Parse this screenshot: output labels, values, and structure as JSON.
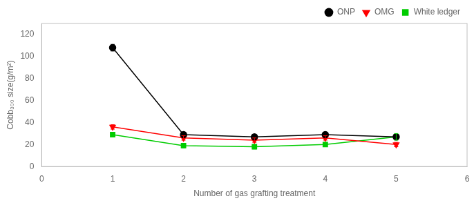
{
  "chart_data": {
    "type": "line",
    "xlabel": "Number of gas grafting treatment",
    "ylabel": "Cobb₃₀₀ size(g/m²)",
    "x": [
      1,
      2,
      3,
      4,
      5
    ],
    "series": [
      {
        "name": "ONP",
        "color": "black",
        "marker": "circle",
        "line_style": "solid",
        "values": [
          108,
          29,
          27,
          29,
          27
        ],
        "errors": [
          3,
          2,
          2,
          2,
          2
        ]
      },
      {
        "name": "OMG",
        "color": "red",
        "marker": "triangle_down",
        "line_style": "solid",
        "values": [
          36,
          26,
          24,
          26,
          20
        ],
        "errors": [
          2,
          2,
          2,
          2,
          2
        ]
      },
      {
        "name": "White ledger",
        "color": "#00cc00",
        "marker": "square",
        "line_style": "solid",
        "values": [
          29,
          19,
          18,
          20,
          27
        ],
        "errors": [
          2,
          2,
          2,
          2,
          3
        ]
      }
    ],
    "xlim": [
      0,
      6
    ],
    "xticks": [
      0,
      1,
      2,
      3,
      4,
      5,
      6
    ],
    "ylim": [
      0,
      130
    ],
    "yticks": [
      0,
      20,
      40,
      60,
      80,
      100,
      120
    ],
    "grid": false,
    "legend": "upper right"
  }
}
